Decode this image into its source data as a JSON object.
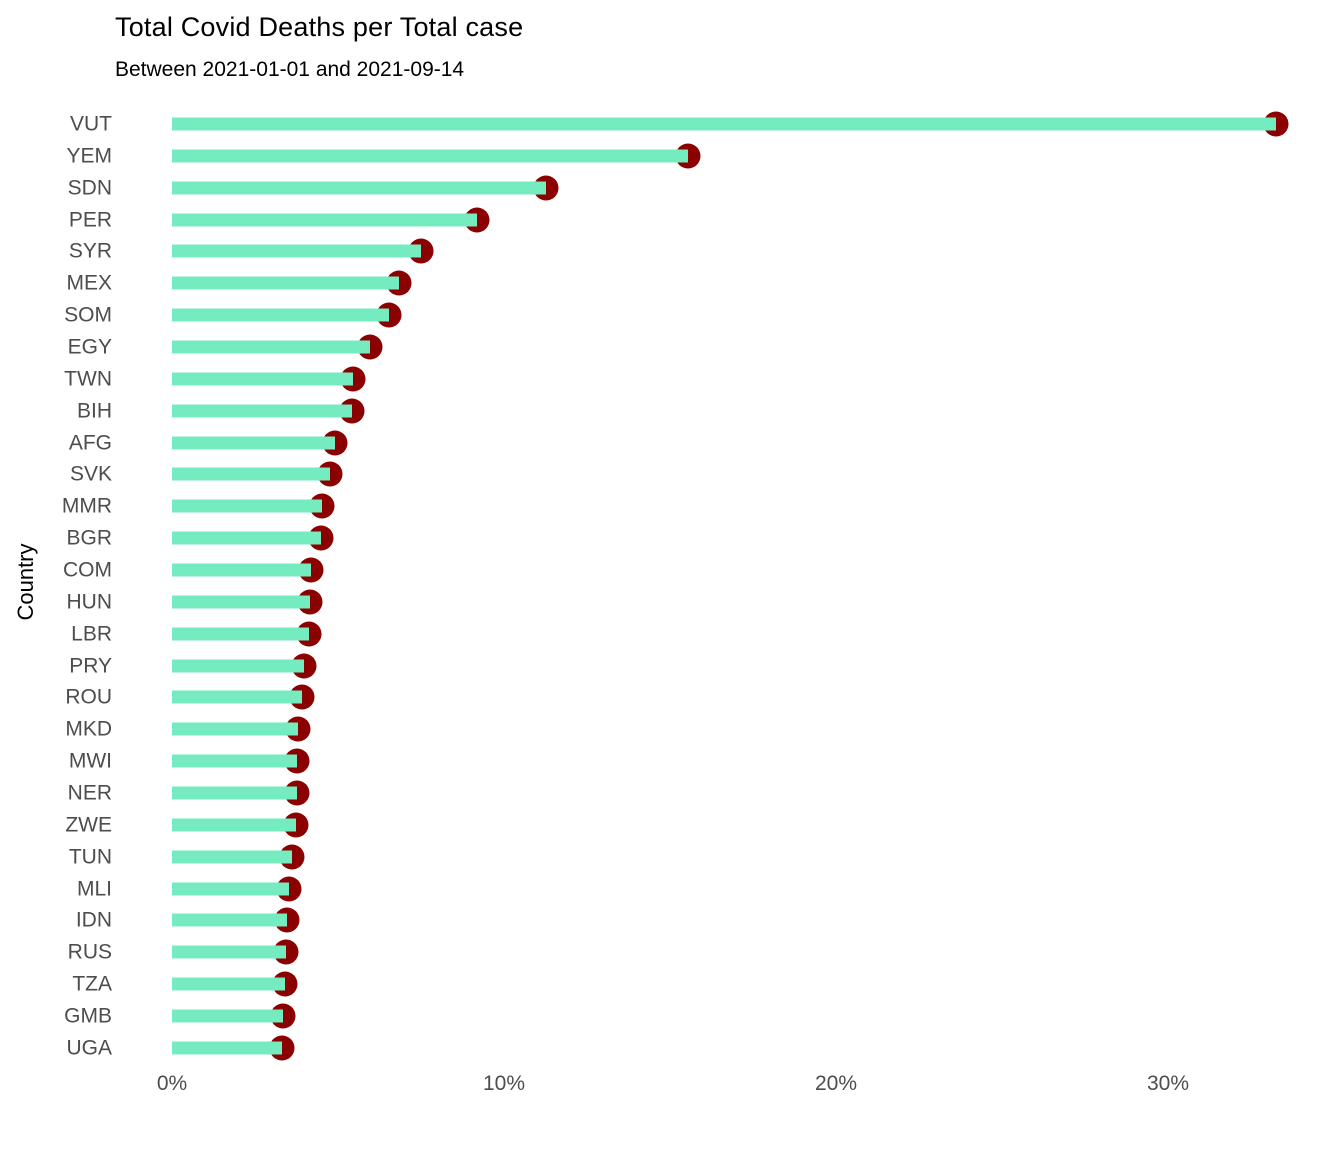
{
  "page": {
    "title": "Total Covid Deaths per Total case",
    "subtitle": "Between 2021-01-01 and 2021-09-14"
  },
  "chart_data": {
    "type": "bar",
    "variant": "lollipop-horizontal",
    "title": "Total Covid Deaths per Total case",
    "subtitle": "Between 2021-01-01 and 2021-09-14",
    "xlabel": "",
    "ylabel": "Country",
    "unit": "%",
    "grid": false,
    "legend": false,
    "xlim": [
      0,
      35.3
    ],
    "x_tick_labels": [
      "0%",
      "10%",
      "20%",
      "30%"
    ],
    "x_tick_values": [
      0,
      10,
      20,
      30
    ],
    "categories": [
      "VUT",
      "YEM",
      "SDN",
      "PER",
      "SYR",
      "MEX",
      "SOM",
      "EGY",
      "TWN",
      "BIH",
      "AFG",
      "SVK",
      "MMR",
      "BGR",
      "COM",
      "HUN",
      "LBR",
      "PRY",
      "ROU",
      "MKD",
      "MWI",
      "NER",
      "ZWE",
      "TUN",
      "MLI",
      "IDN",
      "RUS",
      "TZA",
      "GMB",
      "UGA"
    ],
    "values": [
      33.25,
      15.55,
      11.25,
      9.2,
      7.5,
      6.85,
      6.55,
      5.95,
      5.45,
      5.42,
      4.92,
      4.77,
      4.53,
      4.5,
      4.2,
      4.16,
      4.12,
      3.98,
      3.92,
      3.8,
      3.78,
      3.76,
      3.73,
      3.6,
      3.52,
      3.47,
      3.44,
      3.4,
      3.35,
      3.32
    ],
    "colors": {
      "bar": "#75ebc0",
      "dot": "#8b0000",
      "axis_text": "#4d4d4d",
      "title_text": "#000000"
    }
  }
}
